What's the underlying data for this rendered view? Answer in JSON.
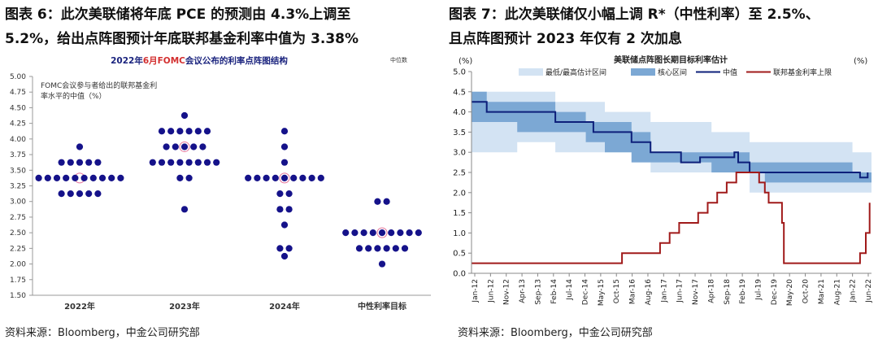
{
  "left": {
    "heading_line1": "图表 6：此次美联储将年底 PCE 的预测由 4.3%上调至",
    "heading_line2": "5.2%，给出点阵图预计年底联邦基金利率中值为 3.38%",
    "source": "资料来源：Bloomberg，中金公司研究部",
    "chart_data": {
      "type": "scatter",
      "title_prefix": "2022年",
      "title_highlight": "6月FOMC",
      "title_suffix": "会议公布的利率点阵图结构",
      "median_tag": "中位数",
      "annotation_line1": "FOMC会议参与者给出的联邦基金利",
      "annotation_line2": "率水平的中值（%）",
      "ylim": [
        1.5,
        5.0
      ],
      "ytick_labels": [
        "5.00",
        "4.75",
        "4.50",
        "4.25",
        "4.00",
        "3.75",
        "3.50",
        "3.25",
        "3.00",
        "2.75",
        "2.50",
        "2.25",
        "2.00",
        "1.75",
        "1.50"
      ],
      "categories": [
        "2022年",
        "2023年",
        "2024年",
        "中性利率目标"
      ],
      "dot_rows": [
        {
          "category": "2022年",
          "rate": 3.875,
          "count": 1
        },
        {
          "category": "2022年",
          "rate": 3.625,
          "count": 5
        },
        {
          "category": "2022年",
          "rate": 3.375,
          "count": 10
        },
        {
          "category": "2022年",
          "rate": 3.125,
          "count": 5
        },
        {
          "category": "2023年",
          "rate": 4.375,
          "count": 1
        },
        {
          "category": "2023年",
          "rate": 4.125,
          "count": 6
        },
        {
          "category": "2023年",
          "rate": 3.875,
          "count": 5
        },
        {
          "category": "2023年",
          "rate": 3.625,
          "count": 8
        },
        {
          "category": "2023年",
          "rate": 3.375,
          "count": 2
        },
        {
          "category": "2023年",
          "rate": 2.875,
          "count": 1
        },
        {
          "category": "2024年",
          "rate": 4.125,
          "count": 1
        },
        {
          "category": "2024年",
          "rate": 3.875,
          "count": 1
        },
        {
          "category": "2024年",
          "rate": 3.625,
          "count": 1
        },
        {
          "category": "2024年",
          "rate": 3.375,
          "count": 9
        },
        {
          "category": "2024年",
          "rate": 3.125,
          "count": 2
        },
        {
          "category": "2024年",
          "rate": 2.875,
          "count": 2
        },
        {
          "category": "2024年",
          "rate": 2.625,
          "count": 1
        },
        {
          "category": "2024年",
          "rate": 2.25,
          "count": 2
        },
        {
          "category": "2024年",
          "rate": 2.125,
          "count": 1
        },
        {
          "category": "中性利率目标",
          "rate": 3.0,
          "count": 2
        },
        {
          "category": "中性利率目标",
          "rate": 2.5,
          "count": 9
        },
        {
          "category": "中性利率目标",
          "rate": 2.25,
          "count": 6
        },
        {
          "category": "中性利率目标",
          "rate": 2.0,
          "count": 1
        }
      ],
      "medians": [
        {
          "category": "2022年",
          "rate": 3.375
        },
        {
          "category": "2023年",
          "rate": 3.875
        },
        {
          "category": "2024年",
          "rate": 3.375
        },
        {
          "category": "中性利率目标",
          "rate": 2.5
        }
      ]
    }
  },
  "right": {
    "heading_line1": "图表 7：此次美联储仅小幅上调 R*（中性利率）至 2.5%、",
    "heading_line2": "且点阵图预计 2023 年仅有 2 次加息",
    "source": "资料来源：Bloomberg，中金公司研究部",
    "chart_data": {
      "type": "line",
      "title": "美联储点阵图长期目标利率估计",
      "unit_left": "(%)",
      "unit_right": "(%)",
      "legend": [
        "最低/最高估计区间",
        "核心区间",
        "中值",
        "联邦基金利率上限"
      ],
      "colors": {
        "range": "#d3e3f3",
        "core": "#7ca8d4",
        "median": "#0d1f7a",
        "ffr": "#a01a1a"
      },
      "ylim": [
        0,
        5
      ],
      "yticks": [
        "5.0",
        "4.5",
        "4.0",
        "3.5",
        "3.0",
        "2.5",
        "2.0",
        "1.5",
        "1.0",
        "0.5",
        "0.0"
      ],
      "x_start": 2012.0,
      "x_end": 2022.5,
      "x_tick_labels": [
        "Jan-12",
        "Jun-12",
        "Nov-12",
        "Apr-13",
        "Sep-13",
        "Feb-14",
        "Jul-14",
        "Dec-14",
        "May-15",
        "Oct-15",
        "Mar-16",
        "Aug-16",
        "Jan-17",
        "Jun-17",
        "Nov-17",
        "Apr-18",
        "Sep-18",
        "Feb-19",
        "Jul-19",
        "Dec-19",
        "May-20",
        "Oct-20",
        "Mar-21",
        "Aug-21",
        "Jan-22",
        "Jun-22"
      ],
      "range_band": [
        {
          "t": 2012.0,
          "lo": 3.75,
          "hi": 4.5
        },
        {
          "t": 2012.4,
          "lo": 3.0,
          "hi": 4.5
        },
        {
          "t": 2013.2,
          "lo": 3.0,
          "hi": 4.5
        },
        {
          "t": 2014.2,
          "lo": 3.25,
          "hi": 4.25
        },
        {
          "t": 2015.0,
          "lo": 3.0,
          "hi": 4.25
        },
        {
          "t": 2015.5,
          "lo": 3.0,
          "hi": 4.0
        },
        {
          "t": 2016.2,
          "lo": 3.0,
          "hi": 4.0
        },
        {
          "t": 2016.7,
          "lo": 2.75,
          "hi": 3.75
        },
        {
          "t": 2017.5,
          "lo": 2.5,
          "hi": 3.75
        },
        {
          "t": 2018.3,
          "lo": 2.5,
          "hi": 3.5
        },
        {
          "t": 2019.3,
          "lo": 2.5,
          "hi": 3.25
        },
        {
          "t": 2019.7,
          "lo": 2.0,
          "hi": 3.25
        },
        {
          "t": 2022.0,
          "lo": 2.0,
          "hi": 3.0
        },
        {
          "t": 2022.5,
          "lo": 2.0,
          "hi": 3.0
        }
      ],
      "core_band": [
        {
          "t": 2012.0,
          "lo": 4.0,
          "hi": 4.5
        },
        {
          "t": 2012.4,
          "lo": 3.75,
          "hi": 4.25
        },
        {
          "t": 2013.2,
          "lo": 3.75,
          "hi": 4.25
        },
        {
          "t": 2014.2,
          "lo": 3.5,
          "hi": 4.0
        },
        {
          "t": 2015.0,
          "lo": 3.5,
          "hi": 3.75
        },
        {
          "t": 2015.5,
          "lo": 3.25,
          "hi": 3.75
        },
        {
          "t": 2016.2,
          "lo": 3.0,
          "hi": 3.5
        },
        {
          "t": 2016.7,
          "lo": 2.75,
          "hi": 3.0
        },
        {
          "t": 2017.5,
          "lo": 2.75,
          "hi": 3.0
        },
        {
          "t": 2018.3,
          "lo": 2.75,
          "hi": 3.0
        },
        {
          "t": 2019.3,
          "lo": 2.5,
          "hi": 2.75
        },
        {
          "t": 2019.7,
          "lo": 2.5,
          "hi": 2.75
        },
        {
          "t": 2022.0,
          "lo": 2.25,
          "hi": 2.5
        },
        {
          "t": 2022.5,
          "lo": 2.25,
          "hi": 2.5
        }
      ],
      "median_series": [
        {
          "t": 2012.0,
          "v": 4.25
        },
        {
          "t": 2012.4,
          "v": 4.25
        },
        {
          "t": 2012.4,
          "v": 4.0
        },
        {
          "t": 2014.2,
          "v": 4.0
        },
        {
          "t": 2014.2,
          "v": 3.75
        },
        {
          "t": 2015.2,
          "v": 3.75
        },
        {
          "t": 2015.2,
          "v": 3.5
        },
        {
          "t": 2016.2,
          "v": 3.5
        },
        {
          "t": 2016.2,
          "v": 3.25
        },
        {
          "t": 2016.7,
          "v": 3.25
        },
        {
          "t": 2016.7,
          "v": 3.0
        },
        {
          "t": 2017.5,
          "v": 3.0
        },
        {
          "t": 2017.5,
          "v": 2.75
        },
        {
          "t": 2018.0,
          "v": 2.75
        },
        {
          "t": 2018.0,
          "v": 2.875
        },
        {
          "t": 2018.9,
          "v": 2.875
        },
        {
          "t": 2018.9,
          "v": 3.0
        },
        {
          "t": 2019.0,
          "v": 3.0
        },
        {
          "t": 2019.0,
          "v": 2.75
        },
        {
          "t": 2019.3,
          "v": 2.75
        },
        {
          "t": 2019.3,
          "v": 2.5
        },
        {
          "t": 2022.2,
          "v": 2.5
        },
        {
          "t": 2022.2,
          "v": 2.375
        },
        {
          "t": 2022.4,
          "v": 2.375
        },
        {
          "t": 2022.4,
          "v": 2.5
        }
      ],
      "ffr_series": [
        {
          "t": 2012.0,
          "v": 0.25
        },
        {
          "t": 2015.95,
          "v": 0.25
        },
        {
          "t": 2015.95,
          "v": 0.5
        },
        {
          "t": 2016.95,
          "v": 0.5
        },
        {
          "t": 2016.95,
          "v": 0.75
        },
        {
          "t": 2017.2,
          "v": 0.75
        },
        {
          "t": 2017.2,
          "v": 1.0
        },
        {
          "t": 2017.45,
          "v": 1.0
        },
        {
          "t": 2017.45,
          "v": 1.25
        },
        {
          "t": 2017.95,
          "v": 1.25
        },
        {
          "t": 2017.95,
          "v": 1.5
        },
        {
          "t": 2018.2,
          "v": 1.5
        },
        {
          "t": 2018.2,
          "v": 1.75
        },
        {
          "t": 2018.45,
          "v": 1.75
        },
        {
          "t": 2018.45,
          "v": 2.0
        },
        {
          "t": 2018.7,
          "v": 2.0
        },
        {
          "t": 2018.7,
          "v": 2.25
        },
        {
          "t": 2018.95,
          "v": 2.25
        },
        {
          "t": 2018.95,
          "v": 2.5
        },
        {
          "t": 2019.55,
          "v": 2.5
        },
        {
          "t": 2019.55,
          "v": 2.25
        },
        {
          "t": 2019.7,
          "v": 2.25
        },
        {
          "t": 2019.7,
          "v": 2.0
        },
        {
          "t": 2019.8,
          "v": 2.0
        },
        {
          "t": 2019.8,
          "v": 1.75
        },
        {
          "t": 2020.15,
          "v": 1.75
        },
        {
          "t": 2020.15,
          "v": 1.25
        },
        {
          "t": 2020.2,
          "v": 1.25
        },
        {
          "t": 2020.2,
          "v": 0.25
        },
        {
          "t": 2022.2,
          "v": 0.25
        },
        {
          "t": 2022.2,
          "v": 0.5
        },
        {
          "t": 2022.35,
          "v": 0.5
        },
        {
          "t": 2022.35,
          "v": 1.0
        },
        {
          "t": 2022.45,
          "v": 1.0
        },
        {
          "t": 2022.45,
          "v": 1.75
        }
      ]
    }
  }
}
